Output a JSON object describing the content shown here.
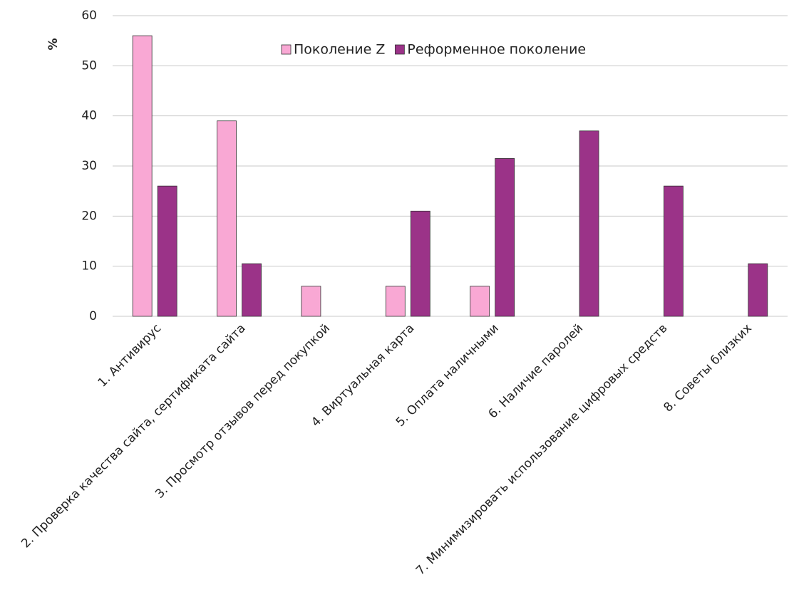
{
  "chart_data": {
    "type": "bar",
    "y_label": "%",
    "categories": [
      "1. Антивирус",
      "2. Проверка качества сайта, сертификата сайта",
      "3. Просмотр отзывов перед покупкой",
      "4. Виртуальная карта",
      "5. Оплата наличными",
      "6. Наличие паролей",
      "7. Минимизировать использование цифровых средств",
      "8. Советы близких"
    ],
    "series": [
      {
        "name": "Поколение Z",
        "color": "#f9a8d4",
        "values": [
          56,
          39,
          6,
          6,
          6,
          0,
          0,
          0
        ]
      },
      {
        "name": "Реформенное поколение",
        "color": "#9b3388",
        "values": [
          26,
          10.5,
          0,
          21,
          31.5,
          37,
          26,
          10.5
        ]
      }
    ],
    "ylim": [
      0,
      60
    ],
    "yticks": [
      0,
      10,
      20,
      30,
      40,
      50,
      60
    ],
    "grid": true,
    "legend": "top"
  }
}
